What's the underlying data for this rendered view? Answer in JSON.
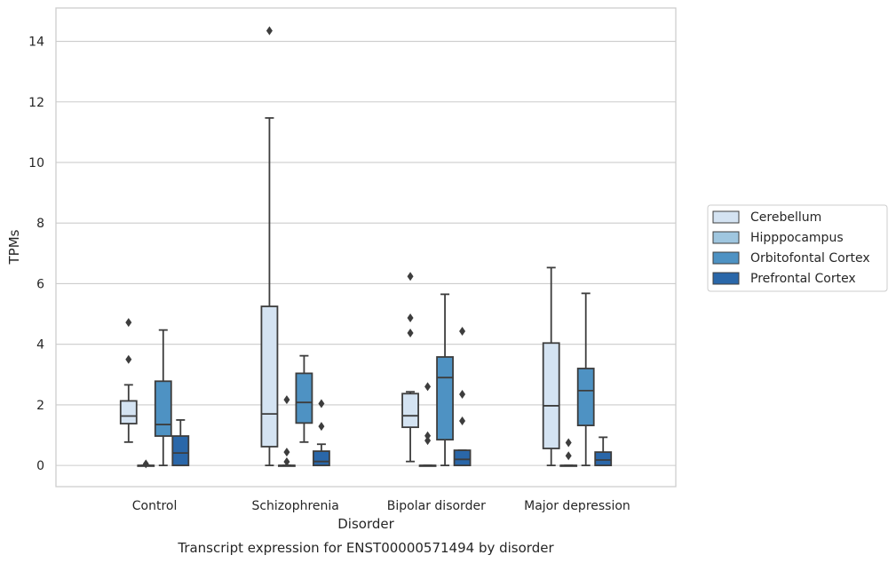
{
  "caption": "Transcript expression for ENST00000571494 by disorder",
  "chart_data": {
    "type": "box",
    "xlabel": "Disorder",
    "ylabel": "TPMs",
    "ylim": [
      -0.7,
      15.1
    ],
    "yticks": [
      0,
      2,
      4,
      6,
      8,
      10,
      12,
      14
    ],
    "grid": "horizontal",
    "legend_position": "right",
    "categories": [
      "Control",
      "Schizophrenia",
      "Bipolar disorder",
      "Major depression"
    ],
    "series": [
      {
        "name": "Cerebellum",
        "color": "#d4e3f2",
        "boxes": [
          {
            "whislo": 0.77,
            "q1": 1.38,
            "med": 1.63,
            "q3": 2.13,
            "whishi": 2.66,
            "fliers": [
              3.5,
              4.72
            ]
          },
          {
            "whislo": 0.0,
            "q1": 0.62,
            "med": 1.7,
            "q3": 5.25,
            "whishi": 11.47,
            "fliers": [
              14.35
            ]
          },
          {
            "whislo": 0.13,
            "q1": 1.26,
            "med": 1.64,
            "q3": 2.37,
            "whishi": 2.43,
            "fliers": [
              4.37,
              4.87,
              6.24
            ]
          },
          {
            "whislo": 0.0,
            "q1": 0.56,
            "med": 1.97,
            "q3": 4.04,
            "whishi": 6.53,
            "fliers": []
          }
        ]
      },
      {
        "name": "Hipppocampus",
        "color": "#9fc6df",
        "boxes": [
          {
            "whislo": 0.0,
            "q1": 0.0,
            "med": 0.0,
            "q3": 0.0,
            "whishi": 0.0,
            "fliers": [
              0.05
            ]
          },
          {
            "whislo": 0.0,
            "q1": 0.0,
            "med": 0.0,
            "q3": 0.0,
            "whishi": 0.0,
            "fliers": [
              0.12,
              0.44,
              2.17
            ]
          },
          {
            "whislo": 0.0,
            "q1": 0.0,
            "med": 0.0,
            "q3": 0.0,
            "whishi": 0.0,
            "fliers": [
              0.82,
              0.98,
              2.6
            ]
          },
          {
            "whislo": 0.0,
            "q1": 0.0,
            "med": 0.0,
            "q3": 0.0,
            "whishi": 0.0,
            "fliers": [
              0.32,
              0.75
            ]
          }
        ]
      },
      {
        "name": "Orbitofontal Cortex",
        "color": "#4e92c3",
        "boxes": [
          {
            "whislo": 0.0,
            "q1": 0.97,
            "med": 1.35,
            "q3": 2.78,
            "whishi": 4.47,
            "fliers": []
          },
          {
            "whislo": 0.77,
            "q1": 1.4,
            "med": 2.08,
            "q3": 3.04,
            "whishi": 3.62,
            "fliers": []
          },
          {
            "whislo": 0.0,
            "q1": 0.85,
            "med": 2.9,
            "q3": 3.58,
            "whishi": 5.65,
            "fliers": []
          },
          {
            "whislo": 0.0,
            "q1": 1.32,
            "med": 2.47,
            "q3": 3.2,
            "whishi": 5.68,
            "fliers": []
          }
        ]
      },
      {
        "name": "Prefrontal Cortex",
        "color": "#2a67a9",
        "boxes": [
          {
            "whislo": 0.0,
            "q1": 0.0,
            "med": 0.41,
            "q3": 0.97,
            "whishi": 1.5,
            "fliers": []
          },
          {
            "whislo": 0.0,
            "q1": 0.0,
            "med": 0.13,
            "q3": 0.47,
            "whishi": 0.7,
            "fliers": [
              1.29,
              2.04
            ]
          },
          {
            "whislo": 0.0,
            "q1": 0.0,
            "med": 0.2,
            "q3": 0.5,
            "whishi": 0.5,
            "fliers": [
              1.47,
              2.35,
              4.43
            ]
          },
          {
            "whislo": 0.0,
            "q1": 0.0,
            "med": 0.18,
            "q3": 0.44,
            "whishi": 0.93,
            "fliers": []
          }
        ]
      }
    ]
  }
}
